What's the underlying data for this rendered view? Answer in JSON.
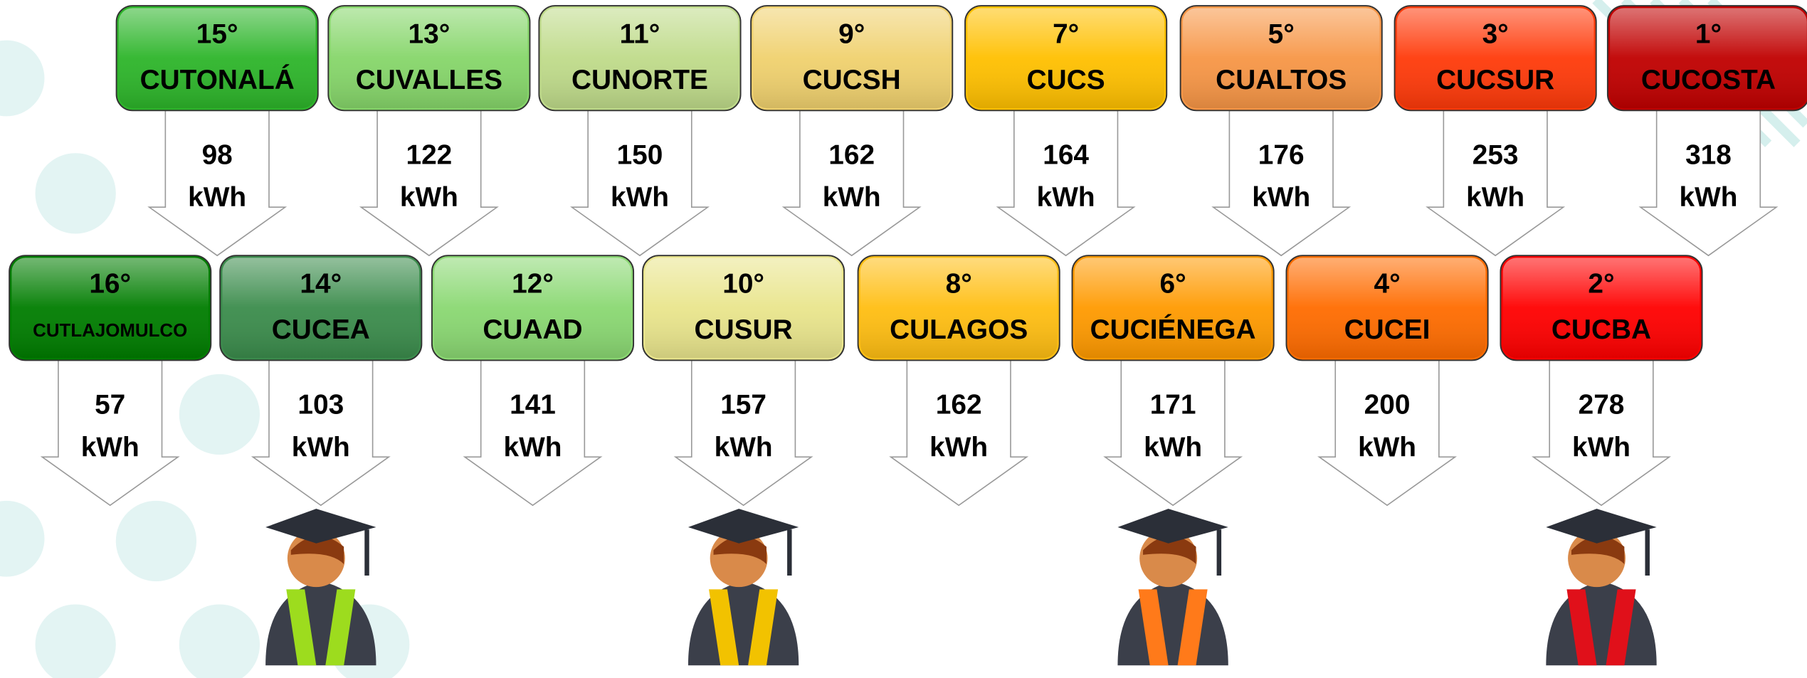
{
  "unit": "kWh",
  "top_row": [
    {
      "rank": "15°",
      "name": "CUTONALÁ",
      "value": 98,
      "color": "#2db52a"
    },
    {
      "rank": "13°",
      "name": "CUVALLES",
      "value": 122,
      "color": "#86d66a"
    },
    {
      "rank": "11°",
      "name": "CUNORTE",
      "value": 150,
      "color": "#bfdb8a"
    },
    {
      "rank": "9°",
      "name": "CUCSH",
      "value": 162,
      "color": "#f0d16e"
    },
    {
      "rank": "7°",
      "name": "CUCS",
      "value": 164,
      "color": "#ffc000"
    },
    {
      "rank": "5°",
      "name": "CUALTOS",
      "value": 176,
      "color": "#f79646"
    },
    {
      "rank": "3°",
      "name": "CUCSUR",
      "value": 253,
      "color": "#ff3a0a"
    },
    {
      "rank": "1°",
      "name": "CUCOSTA",
      "value": 318,
      "color": "#c00000"
    }
  ],
  "bottom_row": [
    {
      "rank": "16°",
      "name": "CUTLAJOMULCO",
      "value": 57,
      "color": "#007d00"
    },
    {
      "rank": "14°",
      "name": "CUCEA",
      "value": 103,
      "color": "#3b8c4c"
    },
    {
      "rank": "12°",
      "name": "CUAAD",
      "value": 141,
      "color": "#8ad872"
    },
    {
      "rank": "10°",
      "name": "CUSUR",
      "value": 157,
      "color": "#e9e58c"
    },
    {
      "rank": "8°",
      "name": "CULAGOS",
      "value": 162,
      "color": "#ffbe12"
    },
    {
      "rank": "6°",
      "name": "CUCIÉNEGA",
      "value": 171,
      "color": "#ff9a00"
    },
    {
      "rank": "4°",
      "name": "CUCEI",
      "value": 200,
      "color": "#ff6c00"
    },
    {
      "rank": "2°",
      "name": "CUCBA",
      "value": 278,
      "color": "#ff0000"
    }
  ]
}
